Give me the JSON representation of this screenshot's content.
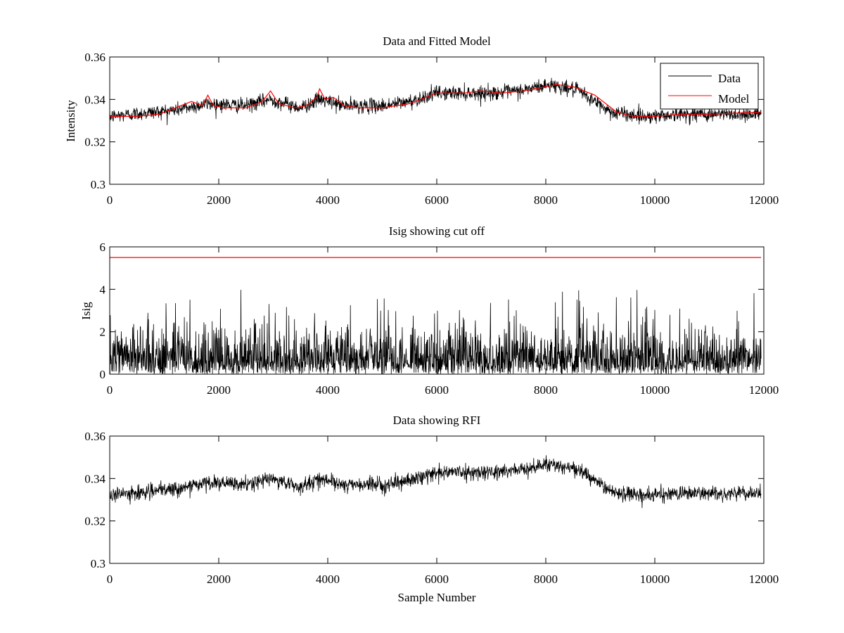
{
  "chart_data": [
    {
      "type": "line",
      "title": "Data and Fitted Model",
      "xlabel": "",
      "ylabel": "Intensity",
      "xlim": [
        0,
        12000
      ],
      "ylim": [
        0.3,
        0.36
      ],
      "xticks": [
        0,
        2000,
        4000,
        6000,
        8000,
        10000,
        12000
      ],
      "xtick_labels": [
        "0",
        "2000",
        "4000",
        "6000",
        "8000",
        "10000",
        "12000"
      ],
      "yticks": [
        0.3,
        0.32,
        0.34,
        0.36
      ],
      "ytick_labels": [
        "0.3",
        "0.32",
        "0.34",
        "0.36"
      ],
      "grid": false,
      "legend": "top-right",
      "x_range_of_data": [
        0,
        11950
      ],
      "series": [
        {
          "name": "Data",
          "color": "#000000",
          "kind": "noisy",
          "description_trend": [
            [
              0,
              0.332
            ],
            [
              1200,
              0.335
            ],
            [
              1800,
              0.338
            ],
            [
              2500,
              0.337
            ],
            [
              2950,
              0.34
            ],
            [
              3500,
              0.336
            ],
            [
              3850,
              0.34
            ],
            [
              4300,
              0.337
            ],
            [
              5000,
              0.337
            ],
            [
              5500,
              0.339
            ],
            [
              6000,
              0.343
            ],
            [
              7000,
              0.343
            ],
            [
              7500,
              0.344
            ],
            [
              8100,
              0.347
            ],
            [
              8600,
              0.344
            ],
            [
              9200,
              0.334
            ],
            [
              9800,
              0.332
            ],
            [
              10500,
              0.333
            ],
            [
              11950,
              0.333
            ]
          ],
          "noise_amplitude": 0.004
        },
        {
          "name": "Model",
          "color": "#ff0000",
          "kind": "smooth",
          "points": [
            [
              0,
              0.332
            ],
            [
              500,
              0.332
            ],
            [
              900,
              0.333
            ],
            [
              1200,
              0.336
            ],
            [
              1500,
              0.339
            ],
            [
              1700,
              0.337
            ],
            [
              1800,
              0.342
            ],
            [
              1900,
              0.337
            ],
            [
              2100,
              0.336
            ],
            [
              2500,
              0.336
            ],
            [
              2800,
              0.339
            ],
            [
              2950,
              0.344
            ],
            [
              3100,
              0.338
            ],
            [
              3400,
              0.336
            ],
            [
              3600,
              0.337
            ],
            [
              3800,
              0.341
            ],
            [
              3850,
              0.345
            ],
            [
              3950,
              0.34
            ],
            [
              4100,
              0.341
            ],
            [
              4300,
              0.337
            ],
            [
              4600,
              0.336
            ],
            [
              5000,
              0.336
            ],
            [
              5500,
              0.338
            ],
            [
              6000,
              0.343
            ],
            [
              6500,
              0.343
            ],
            [
              6800,
              0.344
            ],
            [
              7200,
              0.343
            ],
            [
              7600,
              0.344
            ],
            [
              8000,
              0.346
            ],
            [
              8200,
              0.347
            ],
            [
              8500,
              0.346
            ],
            [
              8900,
              0.342
            ],
            [
              9300,
              0.334
            ],
            [
              9600,
              0.332
            ],
            [
              10000,
              0.332
            ],
            [
              10500,
              0.333
            ],
            [
              11000,
              0.333
            ],
            [
              11950,
              0.334
            ]
          ]
        }
      ]
    },
    {
      "type": "line",
      "title": "Isig showing cut off",
      "xlabel": "",
      "ylabel": "Isig",
      "xlim": [
        0,
        12000
      ],
      "ylim": [
        0,
        6
      ],
      "xticks": [
        0,
        2000,
        4000,
        6000,
        8000,
        10000,
        12000
      ],
      "xtick_labels": [
        "0",
        "2000",
        "4000",
        "6000",
        "8000",
        "10000",
        "12000"
      ],
      "yticks": [
        0,
        2,
        4,
        6
      ],
      "ytick_labels": [
        "0",
        "2",
        "4",
        "6"
      ],
      "grid": false,
      "x_range_of_data": [
        0,
        11950
      ],
      "series": [
        {
          "color": "#000000",
          "kind": "spiky",
          "typical_max": 2.5,
          "peak_max": 4.0
        },
        {
          "color": "#ff0000",
          "kind": "constant",
          "points": [
            [
              0,
              5.5
            ],
            [
              11950,
              5.5
            ]
          ]
        }
      ]
    },
    {
      "type": "line",
      "title": "Data showing RFI",
      "xlabel": "Sample Number",
      "ylabel": "",
      "xlim": [
        0,
        12000
      ],
      "ylim": [
        0.3,
        0.36
      ],
      "xticks": [
        0,
        2000,
        4000,
        6000,
        8000,
        10000,
        12000
      ],
      "xtick_labels": [
        "0",
        "2000",
        "4000",
        "6000",
        "8000",
        "10000",
        "12000"
      ],
      "yticks": [
        0.3,
        0.32,
        0.34,
        0.36
      ],
      "ytick_labels": [
        "0.3",
        "0.32",
        "0.34",
        "0.36"
      ],
      "grid": false,
      "x_range_of_data": [
        0,
        11950
      ],
      "series": [
        {
          "color": "#000000",
          "kind": "noisy",
          "description_trend": [
            [
              0,
              0.332
            ],
            [
              1200,
              0.335
            ],
            [
              1800,
              0.338
            ],
            [
              2500,
              0.337
            ],
            [
              2950,
              0.34
            ],
            [
              3500,
              0.336
            ],
            [
              3850,
              0.34
            ],
            [
              4300,
              0.337
            ],
            [
              5000,
              0.337
            ],
            [
              5500,
              0.339
            ],
            [
              6000,
              0.343
            ],
            [
              7000,
              0.343
            ],
            [
              7500,
              0.344
            ],
            [
              8100,
              0.347
            ],
            [
              8600,
              0.344
            ],
            [
              9200,
              0.334
            ],
            [
              9800,
              0.332
            ],
            [
              10500,
              0.333
            ],
            [
              11950,
              0.333
            ]
          ],
          "noise_amplitude": 0.004
        }
      ]
    }
  ]
}
